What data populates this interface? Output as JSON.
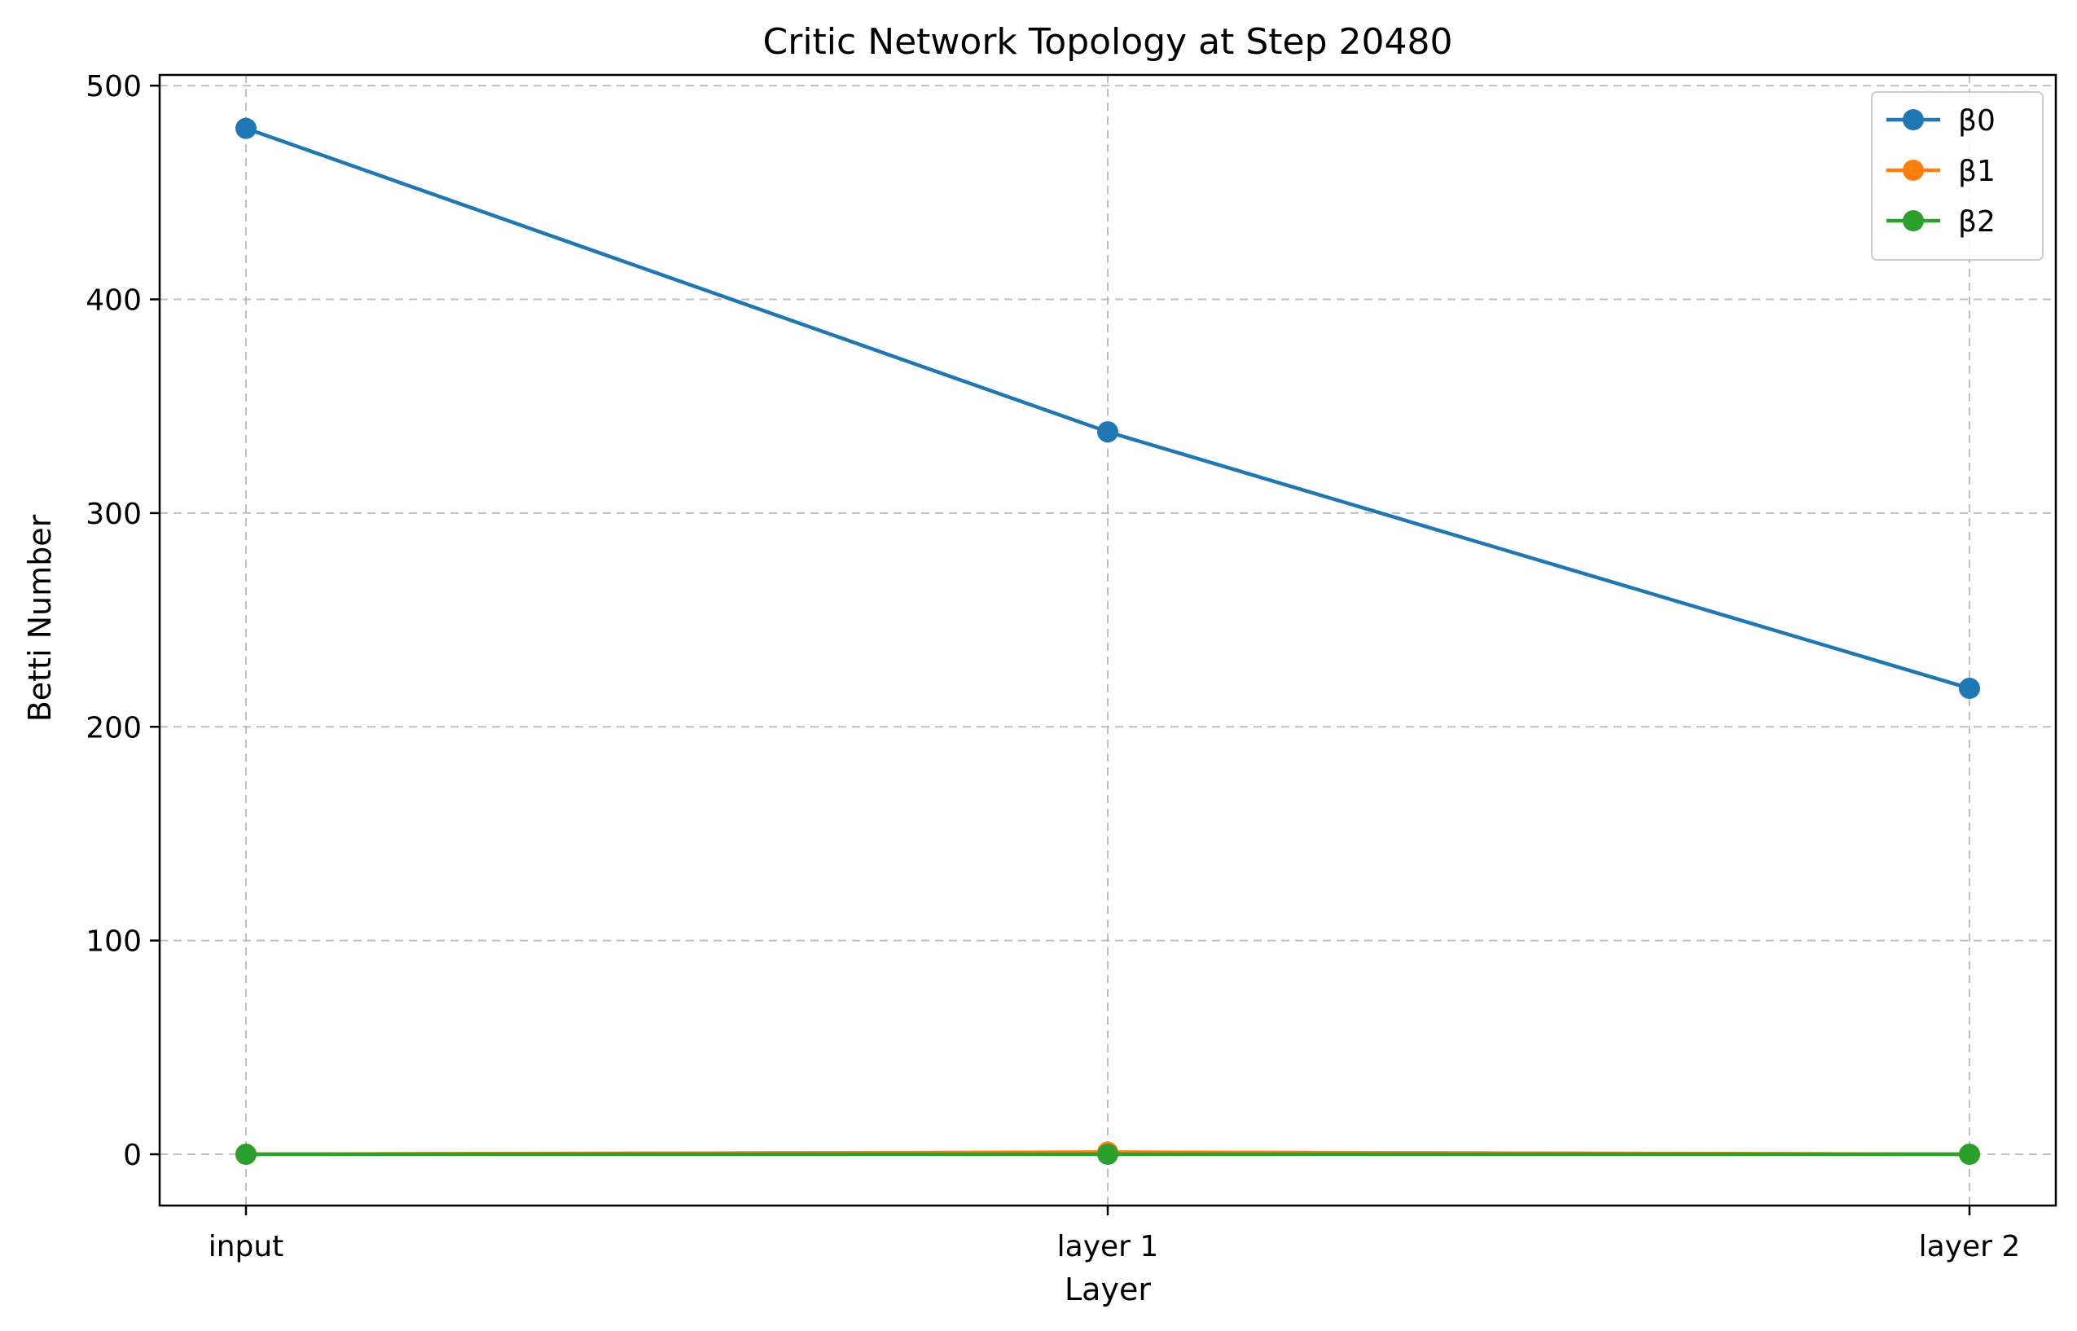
{
  "chart_data": {
    "type": "line",
    "title": "Critic Network Topology at Step 20480",
    "xlabel": "Layer",
    "ylabel": "Betti Number",
    "categories": [
      "input",
      "layer 1",
      "layer 2"
    ],
    "ylim": [
      -24,
      505
    ],
    "yticks": [
      0,
      100,
      200,
      300,
      400,
      500
    ],
    "grid": true,
    "legend_position": "top-right",
    "markers": "circle",
    "series": [
      {
        "name": "β0",
        "color": "#1f77b4",
        "values": [
          480,
          338,
          218
        ]
      },
      {
        "name": "β1",
        "color": "#ff7f0e",
        "values": [
          0,
          1,
          0
        ]
      },
      {
        "name": "β2",
        "color": "#2ca02c",
        "values": [
          0,
          0,
          0
        ]
      }
    ]
  }
}
